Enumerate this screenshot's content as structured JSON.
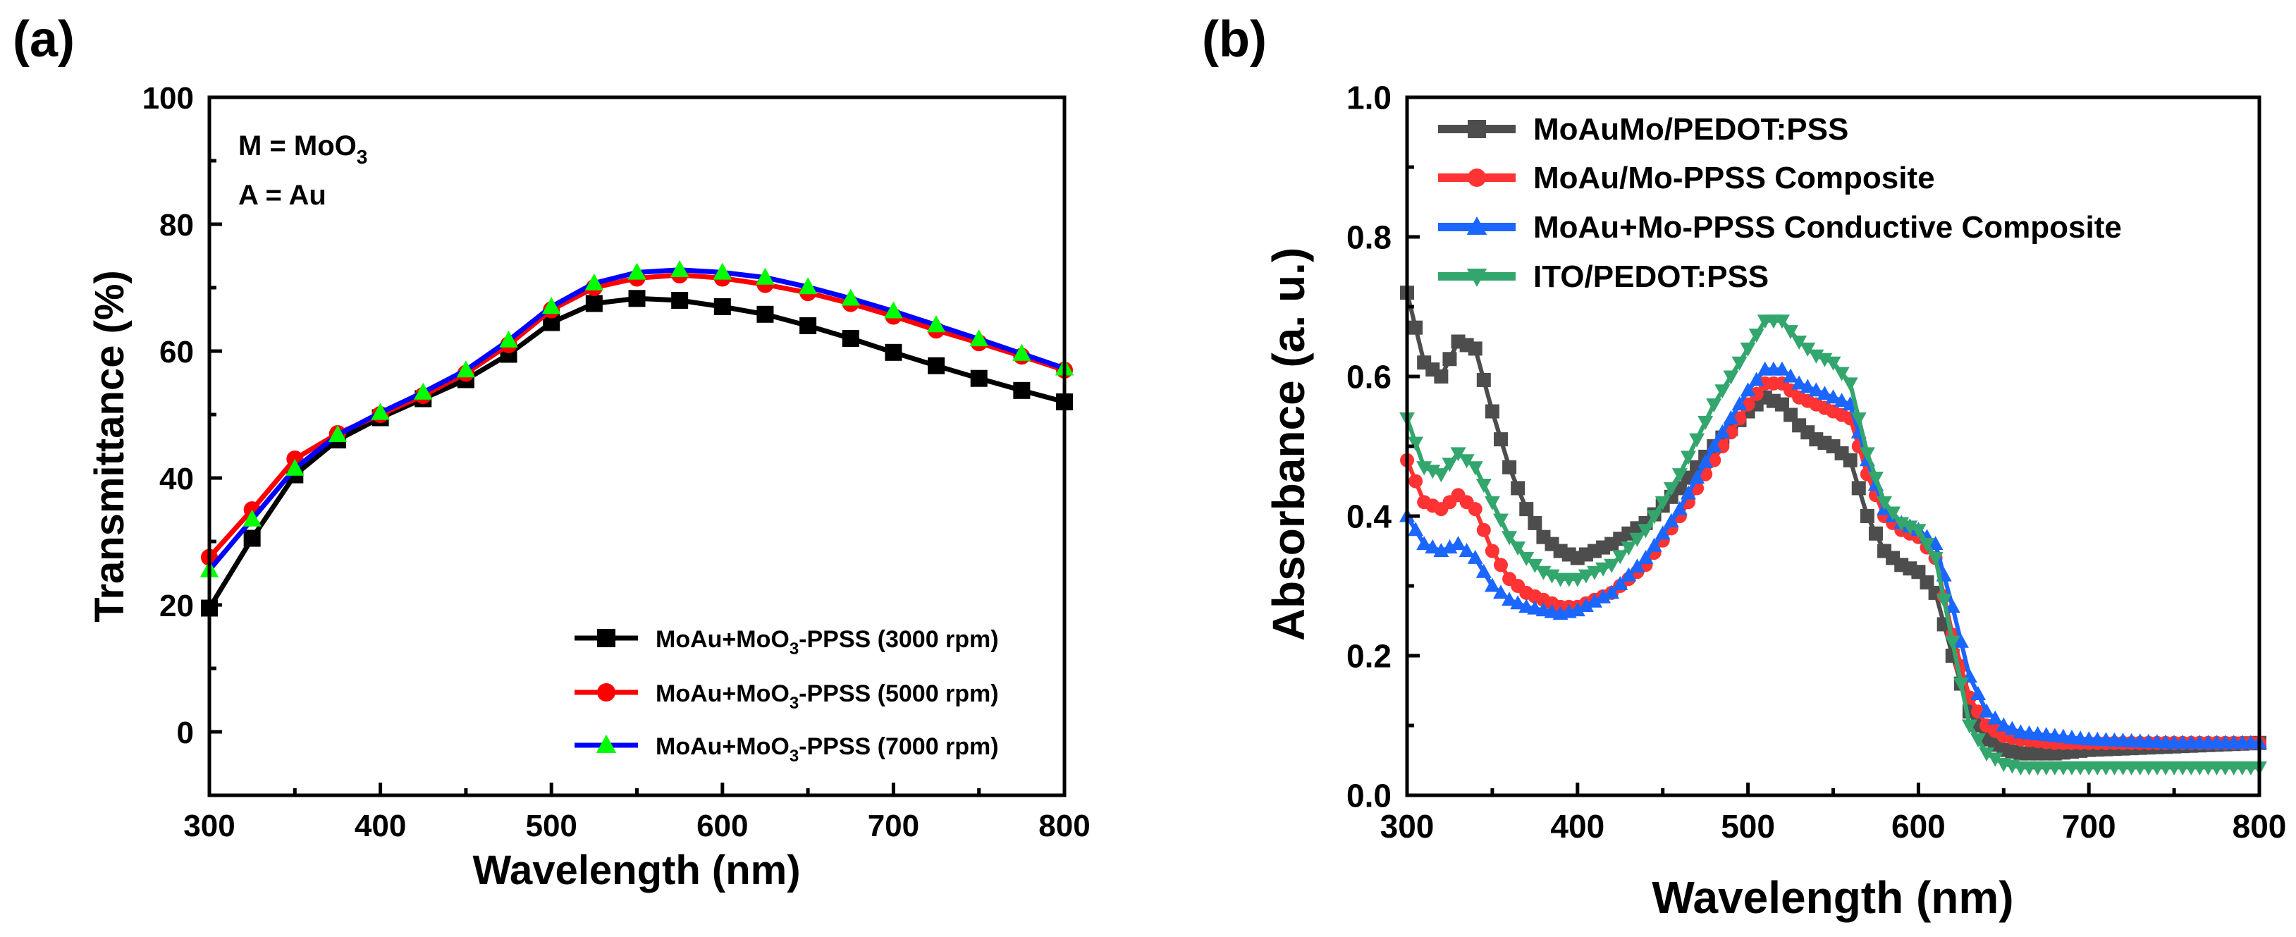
{
  "chart_data": [
    {
      "panel_label": "(a)",
      "type": "line",
      "xlabel": "Wavelength (nm)",
      "ylabel": "Transmittance (%)",
      "xlim": [
        300,
        800
      ],
      "ylim": [
        -10,
        100
      ],
      "xticks": [
        "300",
        "400",
        "500",
        "600",
        "700",
        "800"
      ],
      "yticks": [
        "0",
        "20",
        "40",
        "60",
        "80",
        "100"
      ],
      "annotations": {
        "line1_main": "M = MoO",
        "line1_sub": "3",
        "line2": "A = Au"
      },
      "legend_position": "bottom-right",
      "series": [
        {
          "name": "MoAu+MoO3-PPSS (3000 rpm)",
          "legend_parts": [
            "MoAu+MoO",
            "3",
            "-PPSS (3000 rpm)"
          ],
          "color": "#000000",
          "marker": "square",
          "x": [
            300,
            325,
            350,
            375,
            400,
            425,
            450,
            475,
            500,
            525,
            550,
            575,
            600,
            625,
            650,
            675,
            700,
            725,
            750,
            775,
            800
          ],
          "y": [
            19.5,
            30.5,
            40.5,
            46,
            49.5,
            52.5,
            55.5,
            59.5,
            64.5,
            67.5,
            68.3,
            68,
            67,
            65.8,
            64,
            62,
            59.8,
            57.7,
            55.7,
            53.8,
            52
          ]
        },
        {
          "name": "MoAu+MoO3-PPSS (5000 rpm)",
          "legend_parts": [
            "MoAu+MoO",
            "3",
            "-PPSS (5000 rpm)"
          ],
          "color": "#ff0000",
          "marker": "circle",
          "x": [
            300,
            325,
            350,
            375,
            400,
            425,
            450,
            475,
            500,
            525,
            550,
            575,
            600,
            625,
            650,
            675,
            700,
            725,
            750,
            775,
            800
          ],
          "y": [
            27.5,
            35,
            43,
            47,
            50,
            53,
            56.5,
            61,
            66.5,
            70,
            71.5,
            72,
            71.5,
            70.5,
            69.2,
            67.5,
            65.5,
            63.3,
            61.3,
            59.2,
            57
          ]
        },
        {
          "name": "MoAu+MoO3-PPSS (7000 rpm)",
          "legend_parts": [
            "MoAu+MoO",
            "3",
            "-PPSS (7000 rpm)"
          ],
          "color": "#0000ff",
          "marker_color": "#00ff00",
          "marker": "triangle-up",
          "x": [
            300,
            325,
            350,
            375,
            400,
            425,
            450,
            475,
            500,
            525,
            550,
            575,
            600,
            625,
            650,
            675,
            700,
            725,
            750,
            775,
            800
          ],
          "y": [
            25.5,
            33.5,
            41.5,
            46.8,
            50.3,
            53.5,
            57,
            61.7,
            67,
            70.7,
            72.4,
            72.8,
            72.4,
            71.6,
            70.1,
            68.3,
            66.3,
            64.1,
            61.9,
            59.6,
            57.3
          ]
        }
      ]
    },
    {
      "panel_label": "(b)",
      "type": "line",
      "xlabel": "Wavelength (nm)",
      "ylabel": "Absorbance (a. u.)",
      "xlim": [
        300,
        800
      ],
      "ylim": [
        0.0,
        1.0
      ],
      "xticks": [
        "300",
        "400",
        "500",
        "600",
        "700",
        "800"
      ],
      "yticks": [
        "0.0",
        "0.2",
        "0.4",
        "0.6",
        "0.8",
        "1.0"
      ],
      "legend_position": "top-left",
      "series": [
        {
          "name": "MoAuMo/PEDOT:PSS",
          "color": "#4d4d4d",
          "marker": "square",
          "x": [
            300,
            310,
            320,
            330,
            340,
            350,
            360,
            370,
            380,
            390,
            400,
            420,
            440,
            460,
            480,
            500,
            510,
            520,
            530,
            540,
            550,
            560,
            570,
            580,
            590,
            600,
            610,
            620,
            630,
            640,
            650,
            660,
            680,
            700,
            750,
            800
          ],
          "y": [
            0.72,
            0.62,
            0.6,
            0.65,
            0.64,
            0.55,
            0.47,
            0.41,
            0.37,
            0.35,
            0.34,
            0.36,
            0.39,
            0.44,
            0.5,
            0.55,
            0.57,
            0.56,
            0.53,
            0.51,
            0.5,
            0.48,
            0.4,
            0.35,
            0.33,
            0.32,
            0.29,
            0.2,
            0.12,
            0.08,
            0.065,
            0.06,
            0.06,
            0.065,
            0.07,
            0.075
          ]
        },
        {
          "name": "MoAu/Mo-PPSS Composite",
          "color": "#ff3333",
          "marker": "circle",
          "x": [
            300,
            310,
            320,
            330,
            340,
            350,
            360,
            370,
            380,
            390,
            400,
            420,
            440,
            460,
            480,
            500,
            510,
            520,
            530,
            540,
            550,
            560,
            570,
            580,
            590,
            600,
            610,
            620,
            630,
            640,
            650,
            660,
            680,
            700,
            750,
            800
          ],
          "y": [
            0.48,
            0.42,
            0.41,
            0.43,
            0.41,
            0.35,
            0.31,
            0.29,
            0.28,
            0.27,
            0.27,
            0.29,
            0.33,
            0.4,
            0.48,
            0.56,
            0.59,
            0.59,
            0.57,
            0.56,
            0.55,
            0.54,
            0.46,
            0.4,
            0.38,
            0.37,
            0.34,
            0.23,
            0.14,
            0.1,
            0.085,
            0.08,
            0.075,
            0.075,
            0.075,
            0.075
          ]
        },
        {
          "name": "MoAu+Mo-PPSS Conductive Composite",
          "color": "#1a66ff",
          "marker": "triangle-up",
          "x": [
            300,
            310,
            320,
            330,
            340,
            350,
            360,
            370,
            380,
            390,
            400,
            420,
            440,
            460,
            480,
            500,
            510,
            520,
            530,
            540,
            550,
            560,
            570,
            580,
            590,
            600,
            610,
            620,
            630,
            640,
            650,
            660,
            680,
            700,
            750,
            800
          ],
          "y": [
            0.4,
            0.36,
            0.35,
            0.36,
            0.34,
            0.3,
            0.28,
            0.27,
            0.265,
            0.26,
            0.265,
            0.29,
            0.34,
            0.41,
            0.5,
            0.58,
            0.61,
            0.61,
            0.59,
            0.58,
            0.57,
            0.56,
            0.48,
            0.41,
            0.39,
            0.38,
            0.36,
            0.27,
            0.17,
            0.12,
            0.1,
            0.09,
            0.085,
            0.08,
            0.075,
            0.075
          ]
        },
        {
          "name": "ITO/PEDOT:PSS",
          "color": "#33a66d",
          "marker": "triangle-down",
          "x": [
            300,
            310,
            320,
            330,
            340,
            350,
            360,
            370,
            380,
            390,
            400,
            420,
            440,
            460,
            480,
            500,
            510,
            520,
            530,
            540,
            550,
            560,
            570,
            580,
            590,
            600,
            610,
            620,
            630,
            640,
            650,
            660,
            680,
            700,
            750,
            800
          ],
          "y": [
            0.54,
            0.47,
            0.46,
            0.49,
            0.47,
            0.42,
            0.37,
            0.34,
            0.32,
            0.31,
            0.31,
            0.33,
            0.38,
            0.46,
            0.56,
            0.64,
            0.68,
            0.68,
            0.65,
            0.63,
            0.62,
            0.59,
            0.49,
            0.42,
            0.39,
            0.38,
            0.34,
            0.22,
            0.1,
            0.06,
            0.045,
            0.04,
            0.04,
            0.04,
            0.04,
            0.04
          ]
        }
      ]
    }
  ]
}
